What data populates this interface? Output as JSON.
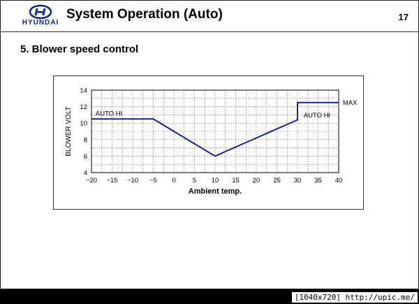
{
  "header": {
    "brand": "HYUNDAI",
    "title": "System Operation  (Auto)",
    "page_number": "17"
  },
  "section": {
    "heading": "5. Blower speed control"
  },
  "watermark": "[1040x720] http://upic.me/",
  "colors": {
    "brand": "#0a2b7a",
    "line": "#1a237e"
  },
  "chart_data": {
    "type": "line",
    "xlabel": "Ambient temp.",
    "ylabel": "BLOWER VOLT",
    "xlim": [
      -20,
      40
    ],
    "ylim": [
      4,
      14
    ],
    "xticks": [
      -20,
      -15,
      -10,
      -5,
      0,
      5,
      10,
      15,
      20,
      25,
      30,
      35,
      40
    ],
    "yticks": [
      4,
      6,
      8,
      10,
      12,
      14
    ],
    "grid": true,
    "series": [
      {
        "x": [
          -20,
          -5,
          10,
          30,
          30,
          40
        ],
        "y": [
          10.5,
          10.5,
          6,
          10.4,
          12.5,
          12.5
        ]
      }
    ],
    "annotations": [
      {
        "text": "AUTO HI",
        "x": -19,
        "y": 11.2
      },
      {
        "text": "AUTO HI",
        "x": 31.5,
        "y": 11.0
      },
      {
        "text": "MAX",
        "x": 41,
        "y": 12.5
      }
    ]
  }
}
